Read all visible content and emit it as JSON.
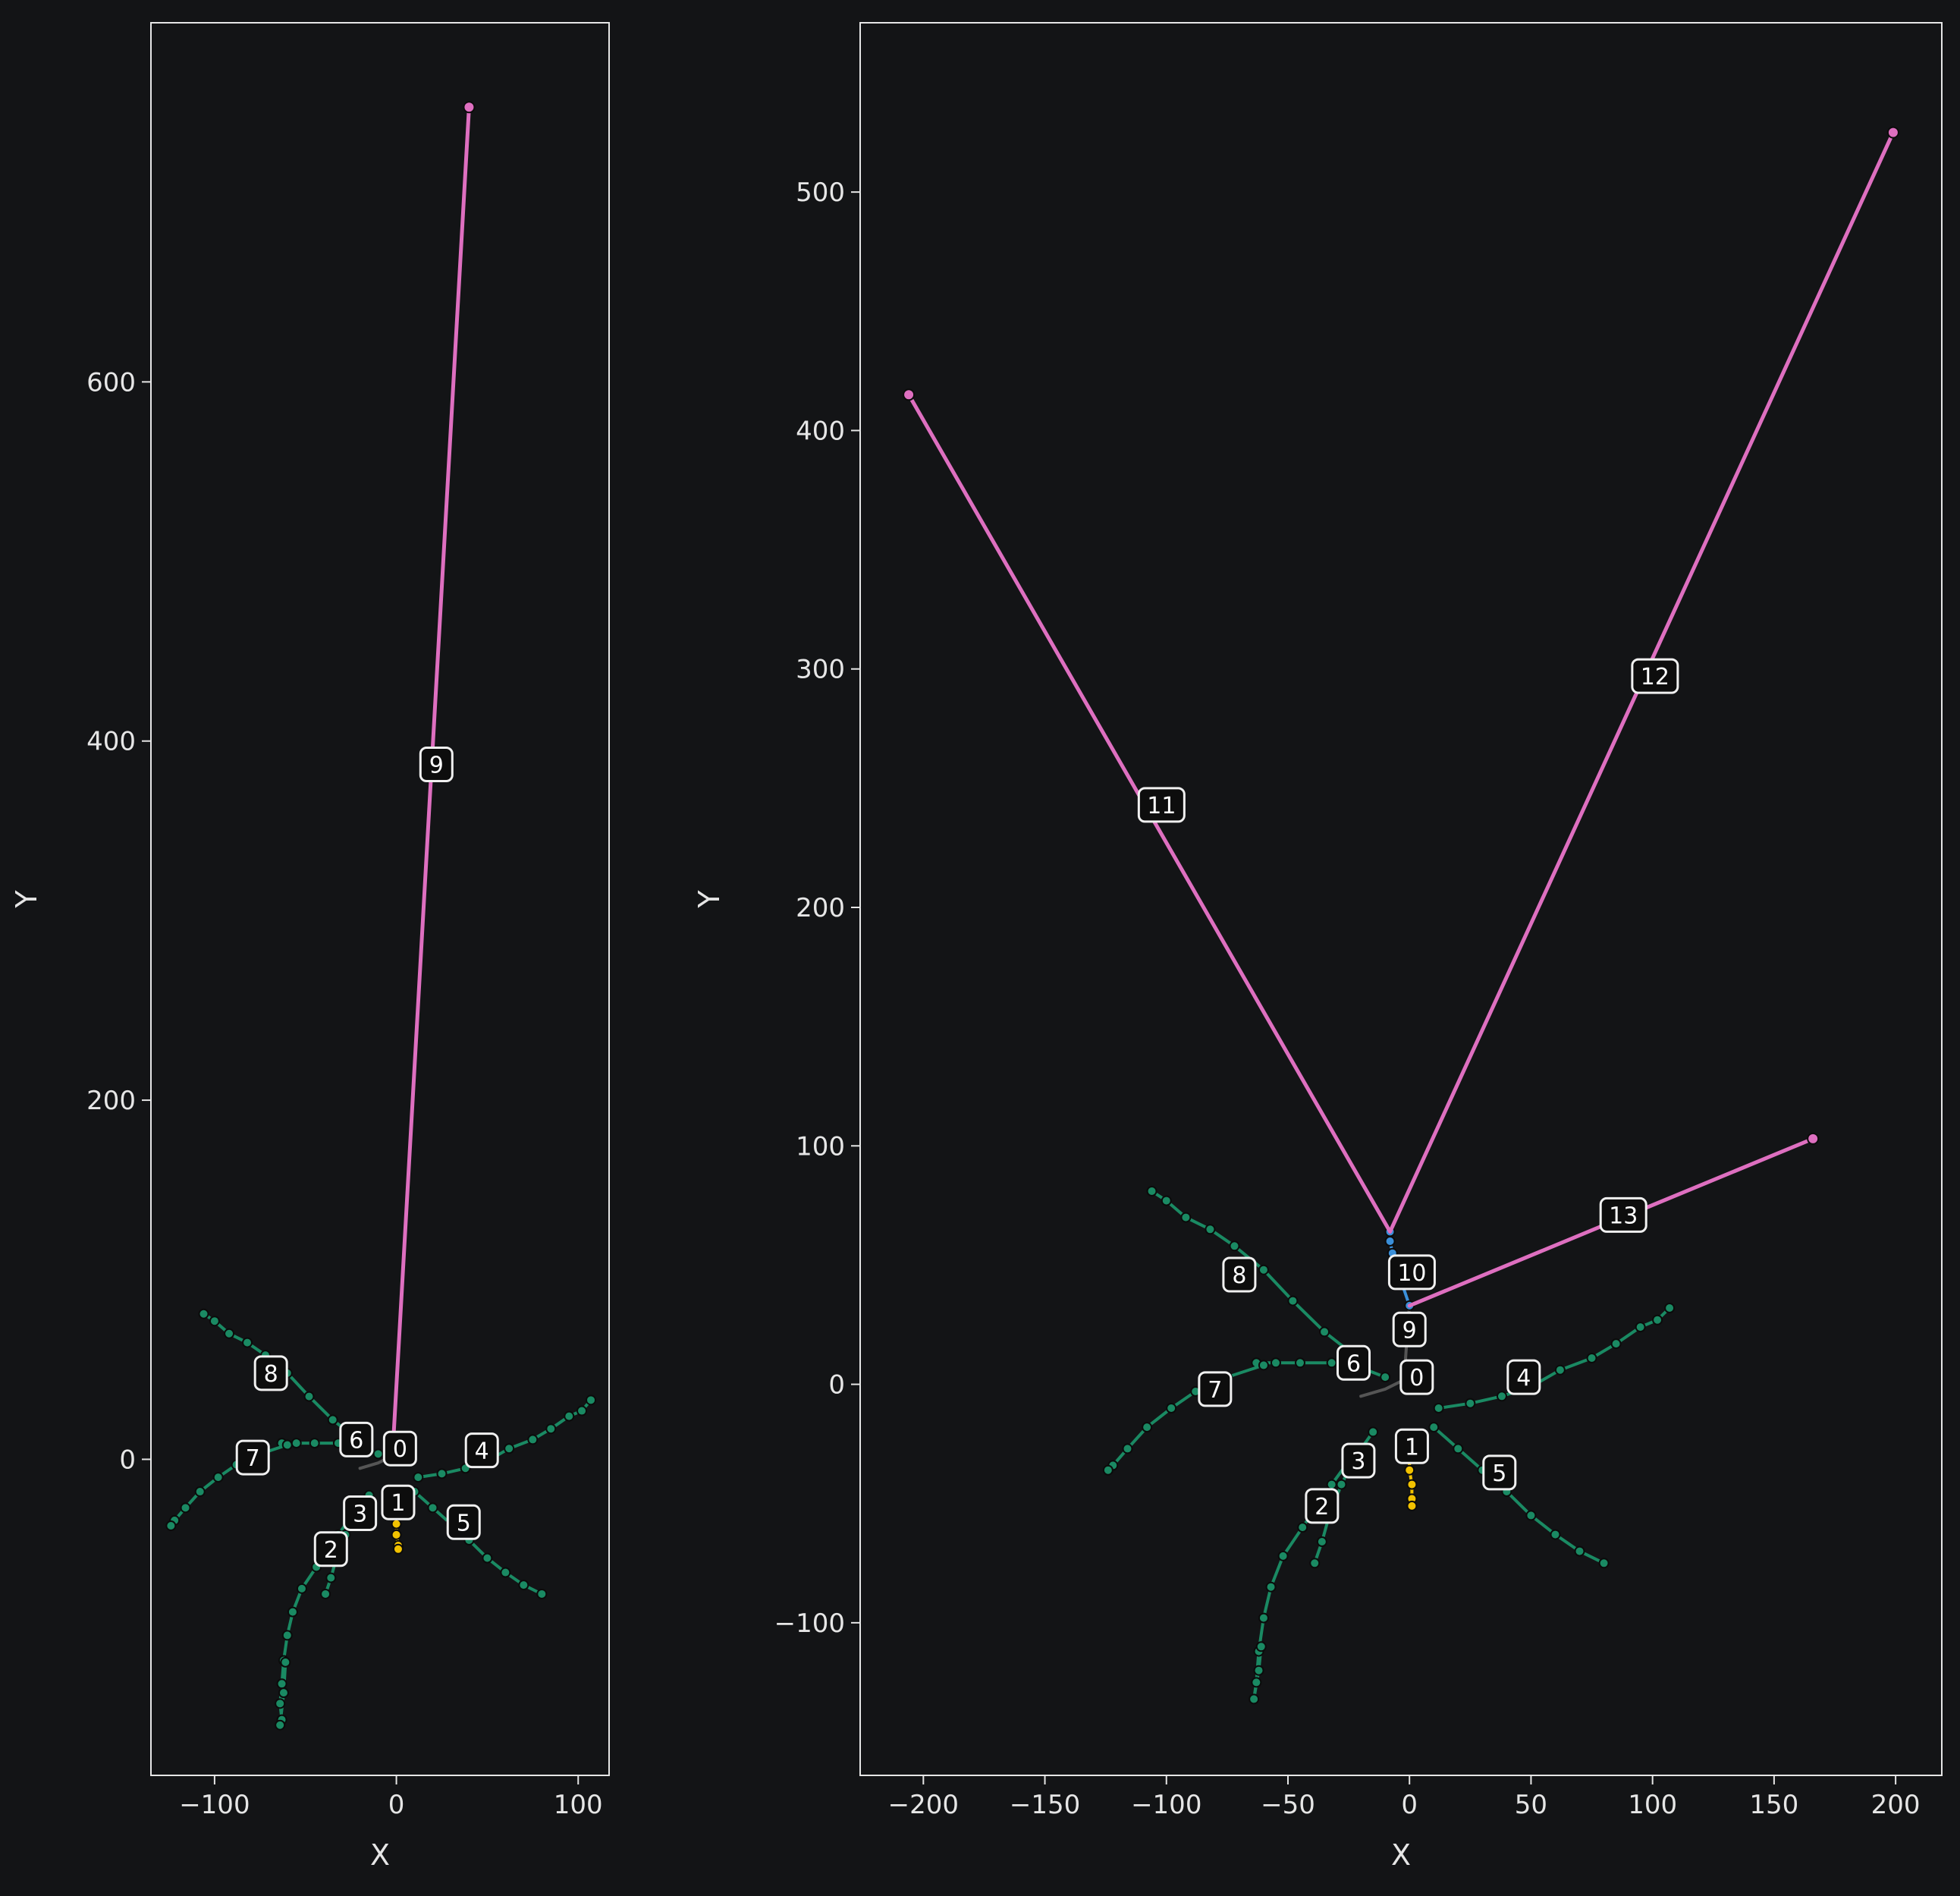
{
  "chart_data": [
    {
      "type": "line",
      "xlabel": "X",
      "ylabel": "Y",
      "xlim": [
        -135,
        117
      ],
      "ylim": [
        -176,
        800
      ],
      "xticks": [
        -100,
        0,
        100
      ],
      "yticks": [
        0,
        200,
        400,
        600
      ],
      "tick_labels_x": [
        "−100",
        "0",
        "100"
      ],
      "tick_labels_y": [
        "0",
        "200",
        "400",
        "600"
      ],
      "series": [
        {
          "id": "0",
          "color": "#555555",
          "dots": false,
          "points": [
            [
              -20,
              -5
            ],
            [
              -10,
              -2
            ],
            [
              -2,
              2
            ]
          ]
        },
        {
          "id": "1",
          "color": "#f2c200",
          "dots": true,
          "points": [
            [
              -1,
              -25
            ],
            [
              0,
              -30
            ],
            [
              0,
              -36
            ],
            [
              0,
              -42
            ],
            [
              1,
              -48
            ],
            [
              1,
              -50
            ]
          ]
        },
        {
          "id": "2",
          "color": "#1a8a63",
          "dots": true,
          "points": [
            [
              -22,
              -28
            ],
            [
              -32,
              -42
            ],
            [
              -44,
              -60
            ],
            [
              -52,
              -72
            ],
            [
              -57,
              -85
            ],
            [
              -60,
              -98
            ],
            [
              -62,
              -112
            ],
            [
              -63,
              -125
            ],
            [
              -64,
              -136
            ],
            [
              -63,
              -145
            ],
            [
              -64,
              -148
            ],
            [
              -62,
              -130
            ],
            [
              -61,
              -113
            ]
          ]
        },
        {
          "id": "3",
          "color": "#1a8a63",
          "dots": true,
          "points": [
            [
              -15,
              -20
            ],
            [
              -22,
              -30
            ],
            [
              -28,
              -42
            ],
            [
              -33,
              -55
            ],
            [
              -36,
              -66
            ],
            [
              -39,
              -75
            ]
          ]
        },
        {
          "id": "4",
          "color": "#1a8a63",
          "dots": true,
          "points": [
            [
              12,
              -10
            ],
            [
              25,
              -8
            ],
            [
              38,
              -5
            ],
            [
              50,
              -1
            ],
            [
              62,
              6
            ],
            [
              75,
              11
            ],
            [
              85,
              17
            ],
            [
              95,
              24
            ],
            [
              102,
              27
            ],
            [
              107,
              33
            ]
          ]
        },
        {
          "id": "5",
          "color": "#1a8a63",
          "dots": true,
          "points": [
            [
              10,
              -18
            ],
            [
              20,
              -27
            ],
            [
              30,
              -36
            ],
            [
              40,
              -45
            ],
            [
              50,
              -55
            ],
            [
              60,
              -63
            ],
            [
              70,
              -70
            ],
            [
              80,
              -75
            ]
          ]
        },
        {
          "id": "6",
          "color": "#1a8a63",
          "dots": true,
          "points": [
            [
              -10,
              3
            ],
            [
              -20,
              7
            ],
            [
              -32,
              9
            ],
            [
              -45,
              9
            ],
            [
              -55,
              9
            ],
            [
              -63,
              9
            ]
          ]
        },
        {
          "id": "7",
          "color": "#1a8a63",
          "dots": true,
          "points": [
            [
              -60,
              8
            ],
            [
              -75,
              3
            ],
            [
              -88,
              -3
            ],
            [
              -98,
              -10
            ],
            [
              -108,
              -18
            ],
            [
              -116,
              -27
            ],
            [
              -122,
              -34
            ],
            [
              -124,
              -37
            ]
          ]
        },
        {
          "id": "8",
          "color": "#1a8a63",
          "dots": true,
          "points": [
            [
              -20,
              10
            ],
            [
              -35,
              22
            ],
            [
              -48,
              35
            ],
            [
              -60,
              48
            ],
            [
              -72,
              58
            ],
            [
              -82,
              65
            ],
            [
              -92,
              70
            ],
            [
              -100,
              77
            ],
            [
              -106,
              81
            ]
          ]
        },
        {
          "id": "9",
          "color": "#de6fc0",
          "dots": false,
          "points": [
            [
              -2,
              5
            ],
            [
              40,
              753
            ]
          ]
        }
      ],
      "badges": [
        {
          "label": "0",
          "x": 2,
          "y": 6
        },
        {
          "label": "1",
          "x": 1,
          "y": -24
        },
        {
          "label": "2",
          "x": -36,
          "y": -50
        },
        {
          "label": "3",
          "x": -20,
          "y": -30
        },
        {
          "label": "4",
          "x": 47,
          "y": 5
        },
        {
          "label": "5",
          "x": 37,
          "y": -35
        },
        {
          "label": "6",
          "x": -22,
          "y": 11
        },
        {
          "label": "7",
          "x": -79,
          "y": 1
        },
        {
          "label": "8",
          "x": -69,
          "y": 48
        },
        {
          "label": "9",
          "x": 22,
          "y": 387
        }
      ]
    },
    {
      "type": "line",
      "xlabel": "X",
      "ylabel": "Y",
      "xlim": [
        -226,
        219
      ],
      "ylim": [
        -164,
        571
      ],
      "xticks": [
        -200,
        -150,
        -100,
        -50,
        0,
        50,
        100,
        150,
        200
      ],
      "yticks": [
        -100,
        0,
        100,
        200,
        300,
        400,
        500
      ],
      "tick_labels_x": [
        "−200",
        "−150",
        "−100",
        "−50",
        "0",
        "50",
        "100",
        "150",
        "200"
      ],
      "tick_labels_y": [
        "−100",
        "0",
        "100",
        "200",
        "300",
        "400",
        "500"
      ],
      "series": [
        {
          "id": "0",
          "color": "#555555",
          "dots": false,
          "points": [
            [
              -20,
              -5
            ],
            [
              -10,
              -2
            ],
            [
              -2,
              2
            ]
          ]
        },
        {
          "id": "1",
          "color": "#f2c200",
          "dots": true,
          "points": [
            [
              -1,
              -25
            ],
            [
              0,
              -30
            ],
            [
              0,
              -36
            ],
            [
              1,
              -42
            ],
            [
              1,
              -48
            ],
            [
              1,
              -51
            ]
          ]
        },
        {
          "id": "2",
          "color": "#1a8a63",
          "dots": true,
          "points": [
            [
              -22,
              -28
            ],
            [
              -32,
              -42
            ],
            [
              -44,
              -60
            ],
            [
              -52,
              -72
            ],
            [
              -57,
              -85
            ],
            [
              -60,
              -98
            ],
            [
              -62,
              -112
            ],
            [
              -63,
              -125
            ],
            [
              -64,
              -132
            ],
            [
              -62,
              -120
            ],
            [
              -61,
              -110
            ]
          ]
        },
        {
          "id": "3",
          "color": "#1a8a63",
          "dots": true,
          "points": [
            [
              -15,
              -20
            ],
            [
              -22,
              -30
            ],
            [
              -28,
              -42
            ],
            [
              -33,
              -55
            ],
            [
              -36,
              -66
            ],
            [
              -39,
              -75
            ]
          ]
        },
        {
          "id": "4",
          "color": "#1a8a63",
          "dots": true,
          "points": [
            [
              12,
              -10
            ],
            [
              25,
              -8
            ],
            [
              38,
              -5
            ],
            [
              50,
              -1
            ],
            [
              62,
              6
            ],
            [
              75,
              11
            ],
            [
              85,
              17
            ],
            [
              95,
              24
            ],
            [
              102,
              27
            ],
            [
              107,
              32
            ]
          ]
        },
        {
          "id": "5",
          "color": "#1a8a63",
          "dots": true,
          "points": [
            [
              10,
              -18
            ],
            [
              20,
              -27
            ],
            [
              30,
              -36
            ],
            [
              40,
              -45
            ],
            [
              50,
              -55
            ],
            [
              60,
              -63
            ],
            [
              70,
              -70
            ],
            [
              80,
              -75
            ]
          ]
        },
        {
          "id": "6",
          "color": "#1a8a63",
          "dots": true,
          "points": [
            [
              -10,
              3
            ],
            [
              -20,
              7
            ],
            [
              -32,
              9
            ],
            [
              -45,
              9
            ],
            [
              -55,
              9
            ],
            [
              -63,
              9
            ]
          ]
        },
        {
          "id": "7",
          "color": "#1a8a63",
          "dots": true,
          "points": [
            [
              -60,
              8
            ],
            [
              -75,
              3
            ],
            [
              -88,
              -3
            ],
            [
              -98,
              -10
            ],
            [
              -108,
              -18
            ],
            [
              -116,
              -27
            ],
            [
              -122,
              -34
            ],
            [
              -124,
              -36
            ]
          ]
        },
        {
          "id": "8",
          "color": "#1a8a63",
          "dots": true,
          "points": [
            [
              -20,
              10
            ],
            [
              -35,
              22
            ],
            [
              -48,
              35
            ],
            [
              -60,
              48
            ],
            [
              -72,
              58
            ],
            [
              -82,
              65
            ],
            [
              -92,
              70
            ],
            [
              -100,
              77
            ],
            [
              -106,
              81
            ]
          ]
        },
        {
          "id": "9",
          "color": "#555555",
          "dots": false,
          "points": [
            [
              -2,
              5
            ],
            [
              -1,
              20
            ],
            [
              0,
              33
            ]
          ]
        },
        {
          "id": "10",
          "color": "#3a8fd9",
          "dots": true,
          "points": [
            [
              0,
              33
            ],
            [
              -4,
              45
            ],
            [
              -7,
              55
            ],
            [
              -8,
              60
            ],
            [
              -8,
              64
            ]
          ]
        },
        {
          "id": "11",
          "color": "#de6fc0",
          "dots": false,
          "points": [
            [
              -8,
              64
            ],
            [
              -206,
              415
            ]
          ]
        },
        {
          "id": "12",
          "color": "#de6fc0",
          "dots": false,
          "points": [
            [
              -8,
              64
            ],
            [
              199,
              525
            ]
          ]
        },
        {
          "id": "13",
          "color": "#de6fc0",
          "dots": false,
          "points": [
            [
              0,
              33
            ],
            [
              166,
              103
            ]
          ]
        }
      ],
      "badges": [
        {
          "label": "0",
          "x": 3,
          "y": 3
        },
        {
          "label": "1",
          "x": 1,
          "y": -26
        },
        {
          "label": "2",
          "x": -36,
          "y": -51
        },
        {
          "label": "3",
          "x": -21,
          "y": -32
        },
        {
          "label": "4",
          "x": 47,
          "y": 3
        },
        {
          "label": "5",
          "x": 37,
          "y": -37
        },
        {
          "label": "6",
          "x": -23,
          "y": 9
        },
        {
          "label": "7",
          "x": -80,
          "y": -2
        },
        {
          "label": "8",
          "x": -70,
          "y": 46
        },
        {
          "label": "9",
          "x": 0,
          "y": 23
        },
        {
          "label": "10",
          "x": 1,
          "y": 47
        },
        {
          "label": "11",
          "x": -102,
          "y": 243
        },
        {
          "label": "12",
          "x": 101,
          "y": 297
        },
        {
          "label": "13",
          "x": 88,
          "y": 71
        }
      ]
    }
  ]
}
